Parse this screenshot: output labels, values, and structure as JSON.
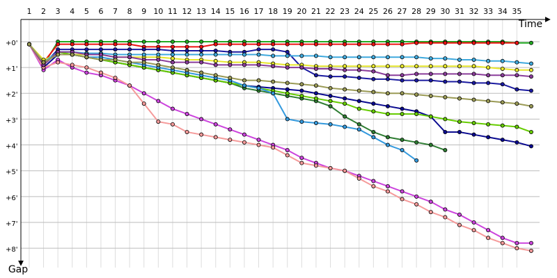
{
  "chart_data": {
    "type": "line",
    "x_label": "Time",
    "y_label": "Gap",
    "x": [
      1,
      2,
      3,
      4,
      5,
      6,
      7,
      8,
      9,
      10,
      11,
      12,
      13,
      14,
      15,
      16,
      17,
      18,
      19,
      20,
      21,
      22,
      23,
      24,
      25,
      26,
      27,
      28,
      29,
      30,
      31,
      32,
      33,
      34,
      35,
      36
    ],
    "xlim": [
      0.42,
      37.07
    ],
    "xticks": [
      1,
      2,
      3,
      4,
      5,
      6,
      7,
      8,
      9,
      10,
      11,
      12,
      13,
      14,
      15,
      16,
      17,
      18,
      19,
      20,
      21,
      22,
      23,
      24,
      25,
      26,
      27,
      28,
      29,
      30,
      31,
      32,
      33,
      34,
      35
    ],
    "ylim": [
      -0.86,
      8.75
    ],
    "yticks": [
      {
        "value": 0,
        "label": "+0'"
      },
      {
        "value": 1,
        "label": "+1'"
      },
      {
        "value": 2,
        "label": "+2'"
      },
      {
        "value": 3,
        "label": "+3'"
      },
      {
        "value": 4,
        "label": "+4'"
      },
      {
        "value": 5,
        "label": "+5'"
      },
      {
        "value": 6,
        "label": "+6'"
      },
      {
        "value": 7,
        "label": "+7'"
      },
      {
        "value": 8,
        "label": "+8'"
      }
    ],
    "y_inverted": true,
    "grid": true,
    "series": [
      {
        "color": "#22aa22",
        "values": [
          0.1,
          0.9,
          0,
          0,
          0,
          0,
          0,
          0,
          0,
          0,
          0,
          0,
          0,
          0,
          0,
          0,
          0,
          0,
          0,
          0,
          0,
          0,
          0,
          0,
          0,
          0,
          0,
          0,
          0,
          0,
          0,
          0,
          0,
          0,
          0.05,
          0.05
        ]
      },
      {
        "color": "#ee1111",
        "values": [
          0.1,
          0.8,
          0.1,
          0.1,
          0.1,
          0.1,
          0.1,
          0.1,
          0.2,
          0.2,
          0.2,
          0.2,
          0.2,
          0.1,
          0.1,
          0.1,
          0.1,
          0.1,
          0.1,
          0.1,
          0.1,
          0.1,
          0.1,
          0.1,
          0.1,
          0.1,
          0.1,
          0.05,
          0.05,
          0.05,
          0.05,
          0.05,
          0.05,
          0.05,
          0.05,
          null
        ]
      },
      {
        "color": "#1a1aa0",
        "values": [
          0.1,
          0.9,
          0.3,
          0.3,
          0.3,
          0.3,
          0.3,
          0.3,
          0.3,
          0.3,
          0.35,
          0.35,
          0.35,
          0.35,
          0.4,
          0.4,
          0.3,
          0.3,
          0.4,
          1.0,
          1.3,
          1.35,
          1.35,
          1.4,
          1.45,
          1.45,
          1.5,
          1.5,
          1.5,
          1.55,
          1.55,
          1.6,
          1.6,
          1.65,
          1.85,
          1.9
        ]
      },
      {
        "color": "#0a0a90",
        "values": [
          0.1,
          1.0,
          0.5,
          0.5,
          0.6,
          0.7,
          0.8,
          0.9,
          1.0,
          1.1,
          1.2,
          1.3,
          1.4,
          1.5,
          1.6,
          1.7,
          1.75,
          1.8,
          1.85,
          1.9,
          2.0,
          2.1,
          2.2,
          2.3,
          2.4,
          2.5,
          2.6,
          2.7,
          2.9,
          3.5,
          3.5,
          3.6,
          3.7,
          3.8,
          3.9,
          4.05
        ]
      },
      {
        "color": "#cc44dd",
        "values": [
          0.1,
          1.1,
          0.7,
          1.0,
          1.2,
          1.3,
          1.5,
          1.7,
          2.0,
          2.3,
          2.6,
          2.8,
          3.0,
          3.2,
          3.4,
          3.6,
          3.8,
          4.0,
          4.2,
          4.5,
          4.7,
          4.9,
          5.0,
          5.2,
          5.4,
          5.6,
          5.8,
          6.0,
          6.2,
          6.5,
          6.7,
          7.0,
          7.3,
          7.6,
          7.8,
          7.8
        ]
      },
      {
        "color": "#f59a9a",
        "values": [
          0.1,
          1.0,
          0.8,
          0.9,
          1.0,
          1.2,
          1.4,
          1.7,
          2.4,
          3.1,
          3.2,
          3.5,
          3.6,
          3.7,
          3.8,
          3.9,
          4.0,
          4.1,
          4.4,
          4.7,
          4.8,
          4.9,
          5.0,
          5.3,
          5.6,
          5.8,
          6.1,
          6.3,
          6.6,
          6.8,
          7.1,
          7.3,
          7.6,
          7.8,
          8.0,
          8.1
        ]
      },
      {
        "color": "#e6e62a",
        "values": [
          0.1,
          0.7,
          0.5,
          0.5,
          0.5,
          0.5,
          0.6,
          0.6,
          0.6,
          0.6,
          0.65,
          0.7,
          0.7,
          0.75,
          0.8,
          0.8,
          0.8,
          0.85,
          0.9,
          0.9,
          0.95,
          0.95,
          0.95,
          0.95,
          0.95,
          0.95,
          0.95,
          0.95,
          0.95,
          0.95,
          0.95,
          0.95,
          1.0,
          1.05,
          1.1,
          1.1
        ]
      },
      {
        "color": "#3fa9dd",
        "values": [
          0.1,
          0.8,
          0.4,
          0.4,
          0.45,
          0.45,
          0.5,
          0.5,
          0.5,
          0.5,
          0.5,
          0.5,
          0.5,
          0.5,
          0.5,
          0.5,
          0.5,
          0.55,
          0.55,
          0.55,
          0.55,
          0.6,
          0.6,
          0.6,
          0.6,
          0.6,
          0.6,
          0.6,
          0.65,
          0.65,
          0.7,
          0.7,
          0.75,
          0.75,
          0.8,
          0.85
        ]
      },
      {
        "color": "#2e7d32",
        "values": [
          0.1,
          0.9,
          0.4,
          0.5,
          0.6,
          0.7,
          0.8,
          0.9,
          1.0,
          1.1,
          1.2,
          1.3,
          1.4,
          1.5,
          1.6,
          1.8,
          1.9,
          2.0,
          2.1,
          2.2,
          2.3,
          2.5,
          2.9,
          3.2,
          3.5,
          3.7,
          3.8,
          3.9,
          4.0,
          4.2,
          null,
          null,
          null,
          null,
          null,
          null
        ]
      },
      {
        "color": "#66cc00",
        "values": [
          0.1,
          0.9,
          0.4,
          0.5,
          0.6,
          0.7,
          0.8,
          0.9,
          1.0,
          1.1,
          1.2,
          1.3,
          1.4,
          1.5,
          1.6,
          1.7,
          1.8,
          1.9,
          2.0,
          2.1,
          2.2,
          2.3,
          2.4,
          2.6,
          2.7,
          2.8,
          2.8,
          2.8,
          2.9,
          3.0,
          3.1,
          3.15,
          3.2,
          3.25,
          3.3,
          3.5
        ]
      },
      {
        "color": "#3399dd",
        "values": [
          0.1,
          0.8,
          0.5,
          0.5,
          0.6,
          0.6,
          0.7,
          0.8,
          0.9,
          1.0,
          1.1,
          1.2,
          1.3,
          1.4,
          1.5,
          1.7,
          1.8,
          2.0,
          3.0,
          3.1,
          3.15,
          3.2,
          3.3,
          3.4,
          3.7,
          4.0,
          4.2,
          4.6,
          null,
          null,
          null,
          null,
          null,
          null,
          null,
          null
        ]
      },
      {
        "color": "#8a3c9a",
        "values": [
          0.1,
          0.9,
          0.4,
          0.4,
          0.5,
          0.5,
          0.6,
          0.6,
          0.7,
          0.7,
          0.8,
          0.8,
          0.8,
          0.9,
          0.9,
          0.9,
          0.9,
          0.95,
          1.0,
          1.0,
          1.05,
          1.05,
          1.1,
          1.1,
          1.15,
          1.3,
          1.3,
          1.25,
          1.25,
          1.25,
          1.25,
          1.25,
          1.3,
          1.3,
          1.3,
          1.35
        ]
      },
      {
        "color": "#9a9a55",
        "values": [
          0.1,
          0.8,
          0.5,
          0.5,
          0.6,
          0.7,
          0.7,
          0.8,
          0.8,
          0.9,
          1.0,
          1.1,
          1.2,
          1.3,
          1.4,
          1.5,
          1.5,
          1.55,
          1.6,
          1.65,
          1.7,
          1.8,
          1.85,
          1.9,
          1.95,
          2.0,
          2.0,
          2.05,
          2.1,
          2.15,
          2.2,
          2.25,
          2.3,
          2.35,
          2.4,
          2.5
        ]
      }
    ]
  }
}
